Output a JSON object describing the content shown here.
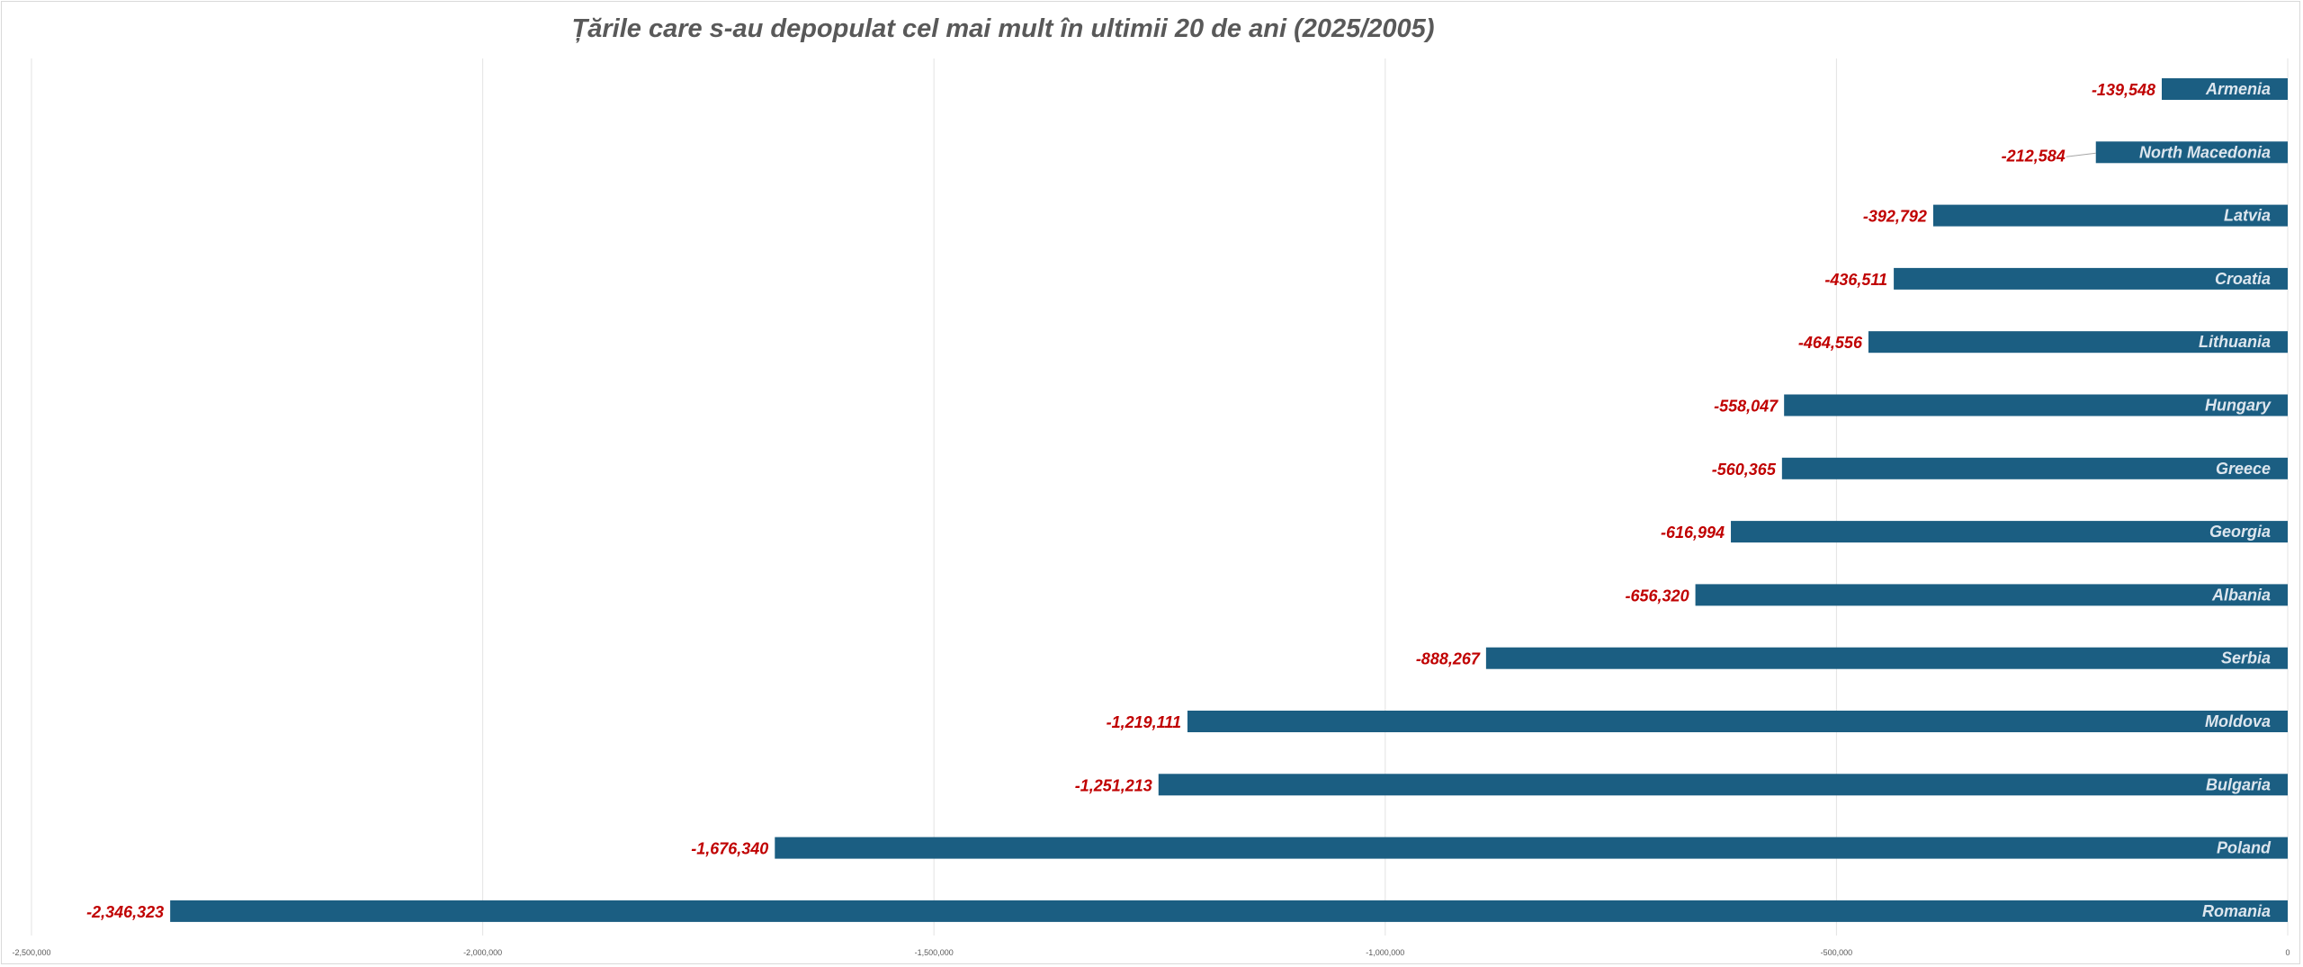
{
  "chart_data": {
    "type": "bar",
    "orientation": "horizontal",
    "title": "Țările care s-au depopulat cel mai mult în ultimii 20 de ani (2025/2005)",
    "categories": [
      "Armenia",
      "North Macedonia",
      "Latvia",
      "Croatia",
      "Lithuania",
      "Hungary",
      "Greece",
      "Georgia",
      "Albania",
      "Serbia",
      "Moldova",
      "Bulgaria",
      "Poland",
      "Romania"
    ],
    "values": [
      -139548,
      -212584,
      -392792,
      -436511,
      -464556,
      -558047,
      -560365,
      -616994,
      -656320,
      -888267,
      -1219111,
      -1251213,
      -1676340,
      -2346323
    ],
    "value_labels": [
      "-139,548",
      "-212,584",
      "-392,792",
      "-436,511",
      "-464,556",
      "-558,047",
      "-560,365",
      "-616,994",
      "-656,320",
      "-888,267",
      "-1,219,111",
      "-1,251,213",
      "-1,676,340",
      "-2,346,323"
    ],
    "xlim": [
      -2500000,
      0
    ],
    "xticks": [
      -2500000,
      -2000000,
      -1500000,
      -1000000,
      -500000,
      0
    ],
    "xtick_labels": [
      "-2,500,000",
      "-2,000,000",
      "-1,500,000",
      "-1,000,000",
      "-500,000",
      "0"
    ],
    "grid": true,
    "bar_color": "#1b5e82",
    "value_label_color": "#c00000",
    "category_label_color": "#dde6ee"
  }
}
